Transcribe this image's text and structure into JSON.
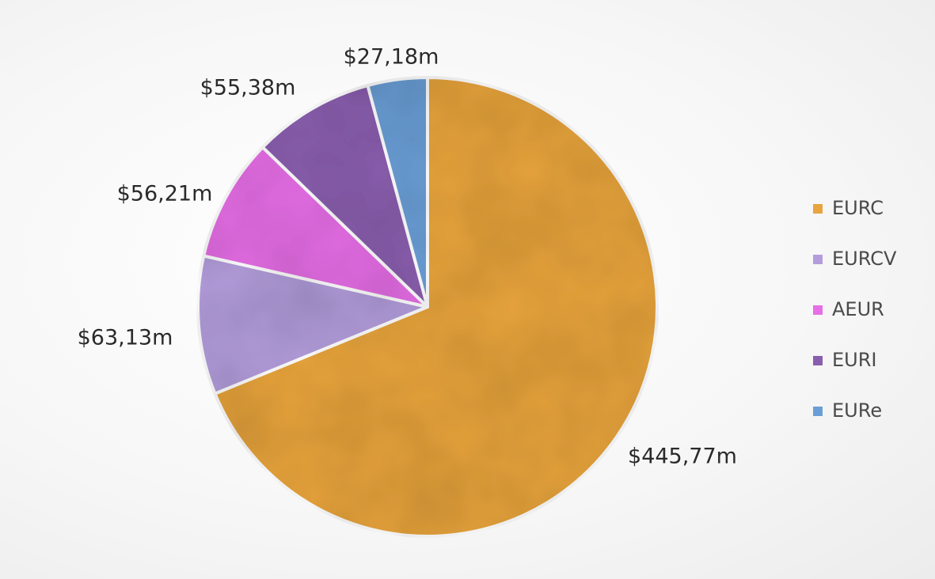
{
  "chart_data": {
    "type": "pie",
    "title": "",
    "legend_position": "right",
    "start_angle_deg": 0,
    "direction": "clockwise",
    "slices": [
      {
        "name": "EURC",
        "value": 445.77,
        "label": "$445,77m",
        "color": "#E8A43E"
      },
      {
        "name": "EURCV",
        "value": 63.13,
        "label": "$63,13m",
        "color": "#B39DDB"
      },
      {
        "name": "AEUR",
        "value": 56.21,
        "label": "$56,21m",
        "color": "#E66EE6"
      },
      {
        "name": "EURI",
        "value": 55.38,
        "label": "$55,38m",
        "color": "#8A5EAE"
      },
      {
        "name": "EURe",
        "value": 27.18,
        "label": "$27,18m",
        "color": "#6A9ED6"
      }
    ]
  }
}
